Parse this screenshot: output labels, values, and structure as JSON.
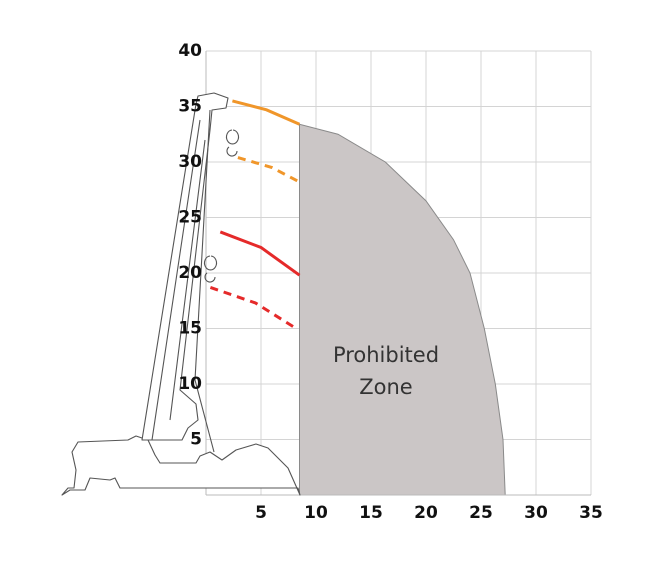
{
  "chart_data": {
    "type": "line",
    "xlim": [
      0,
      35
    ],
    "ylim": [
      0,
      40
    ],
    "xticks": [
      5,
      10,
      15,
      20,
      25,
      30,
      35
    ],
    "yticks": [
      5,
      10,
      15,
      20,
      25,
      30,
      35,
      40
    ],
    "grid": true,
    "series": [
      {
        "color": "#f0962a",
        "dashed": false,
        "x": [
          2.4,
          5.5,
          8.5
        ],
        "values": [
          35.5,
          34.7,
          33.4
        ]
      },
      {
        "color": "#f0962a",
        "dashed": true,
        "x": [
          2.9,
          6,
          8.5
        ],
        "values": [
          30.4,
          29.5,
          28.2
        ]
      },
      {
        "color": "#e52a2a",
        "dashed": false,
        "x": [
          1.3,
          5,
          8.5
        ],
        "values": [
          23.7,
          22.3,
          19.8
        ]
      },
      {
        "color": "#e52a2a",
        "dashed": true,
        "x": [
          0.4,
          4.5,
          8.2
        ],
        "values": [
          18.7,
          17.3,
          15.0
        ]
      }
    ],
    "zone": {
      "color": "#cbc6c6",
      "label": [
        "Prohibited",
        "Zone"
      ],
      "x": [
        8.5,
        8.5,
        12,
        16.3,
        20,
        22.5,
        24,
        25.3,
        26.3,
        27,
        27.2
      ],
      "y": [
        0,
        33.4,
        32.5,
        30,
        26.5,
        23,
        20,
        15,
        10,
        5,
        0
      ]
    }
  }
}
